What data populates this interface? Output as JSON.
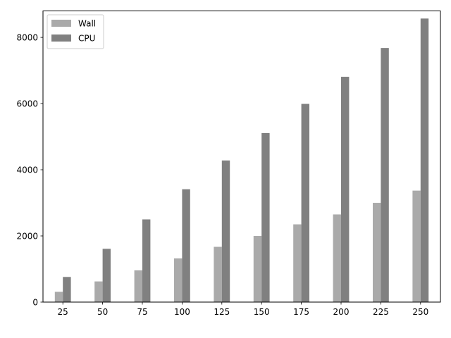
{
  "chart_data": {
    "type": "bar",
    "title": "",
    "xlabel": "",
    "ylabel": "",
    "categories": [
      "25",
      "50",
      "75",
      "100",
      "125",
      "150",
      "175",
      "200",
      "225",
      "250"
    ],
    "series": [
      {
        "name": "Wall",
        "color": "#aaaaaa",
        "values": [
          310,
          625,
          960,
          1320,
          1670,
          2000,
          2350,
          2650,
          3000,
          3370
        ]
      },
      {
        "name": "CPU",
        "color": "#808080",
        "values": [
          760,
          1610,
          2500,
          3410,
          4280,
          5110,
          5990,
          6810,
          7680,
          8570
        ]
      }
    ],
    "ylim": [
      0,
      8800
    ],
    "yticks": [
      0,
      2000,
      4000,
      6000,
      8000
    ],
    "ytick_labels": [
      "0",
      "2000",
      "4000",
      "6000",
      "8000"
    ],
    "grid": false,
    "legend_position": "top-left"
  }
}
